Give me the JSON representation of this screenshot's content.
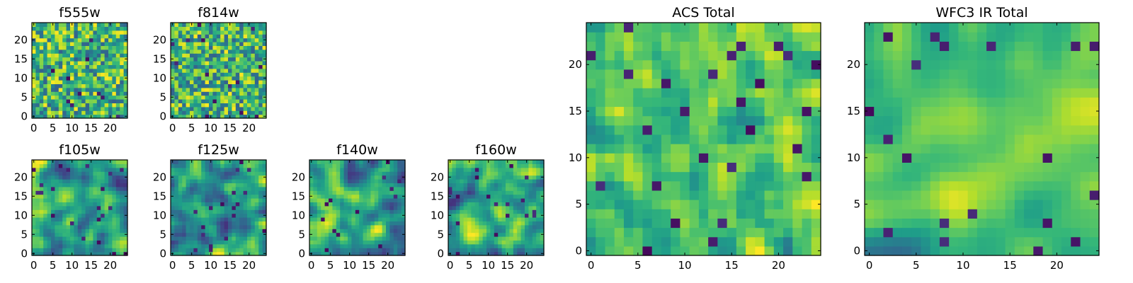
{
  "figure": {
    "colormap": [
      "#440154",
      "#482777",
      "#3e4989",
      "#31688e",
      "#26828e",
      "#1f9e89",
      "#35b779",
      "#6ece58",
      "#b5de2b",
      "#fde725"
    ]
  },
  "chart_data": [
    {
      "type": "heatmap",
      "title": "f555w",
      "grid": [
        25,
        25
      ],
      "xlim": [
        0,
        24
      ],
      "ylim": [
        0,
        24
      ],
      "xticks": [
        0,
        5,
        10,
        15,
        20
      ],
      "yticks": [
        0,
        5,
        10,
        15,
        20
      ],
      "texture": "noisy",
      "seed": 11
    },
    {
      "type": "heatmap",
      "title": "f814w",
      "grid": [
        25,
        25
      ],
      "xlim": [
        0,
        24
      ],
      "ylim": [
        0,
        24
      ],
      "xticks": [
        0,
        5,
        10,
        15,
        20
      ],
      "yticks": [
        0,
        5,
        10,
        15,
        20
      ],
      "texture": "noisy",
      "seed": 23
    },
    {
      "type": "heatmap",
      "title": "f105w",
      "grid": [
        25,
        25
      ],
      "xlim": [
        0,
        24
      ],
      "ylim": [
        0,
        24
      ],
      "xticks": [
        0,
        5,
        10,
        15,
        20
      ],
      "yticks": [
        0,
        5,
        10,
        15,
        20
      ],
      "texture": "smooth",
      "seed": 37
    },
    {
      "type": "heatmap",
      "title": "f125w",
      "grid": [
        25,
        25
      ],
      "xlim": [
        0,
        24
      ],
      "ylim": [
        0,
        24
      ],
      "xticks": [
        0,
        5,
        10,
        15,
        20
      ],
      "yticks": [
        0,
        5,
        10,
        15,
        20
      ],
      "texture": "smooth",
      "seed": 41
    },
    {
      "type": "heatmap",
      "title": "f140w",
      "grid": [
        25,
        25
      ],
      "xlim": [
        0,
        24
      ],
      "ylim": [
        0,
        24
      ],
      "xticks": [
        0,
        5,
        10,
        15,
        20
      ],
      "yticks": [
        0,
        5,
        10,
        15,
        20
      ],
      "texture": "smooth",
      "seed": 53
    },
    {
      "type": "heatmap",
      "title": "f160w",
      "grid": [
        25,
        25
      ],
      "xlim": [
        0,
        24
      ],
      "ylim": [
        0,
        24
      ],
      "xticks": [
        0,
        5,
        10,
        15,
        20
      ],
      "yticks": [
        0,
        5,
        10,
        15,
        20
      ],
      "texture": "smooth",
      "seed": 67
    },
    {
      "type": "heatmap",
      "title": "ACS Total",
      "grid": [
        25,
        25
      ],
      "xlim": [
        0,
        24
      ],
      "ylim": [
        0,
        24
      ],
      "xticks": [
        0,
        5,
        10,
        15,
        20
      ],
      "yticks": [
        0,
        5,
        10,
        15,
        20
      ],
      "texture": "acs",
      "seed": 79
    },
    {
      "type": "heatmap",
      "title": "WFC3 IR Total",
      "grid": [
        25,
        25
      ],
      "xlim": [
        0,
        24
      ],
      "ylim": [
        0,
        24
      ],
      "xticks": [
        0,
        5,
        10,
        15,
        20
      ],
      "yticks": [
        0,
        5,
        10,
        15,
        20
      ],
      "texture": "wfc3",
      "seed": 97
    }
  ]
}
